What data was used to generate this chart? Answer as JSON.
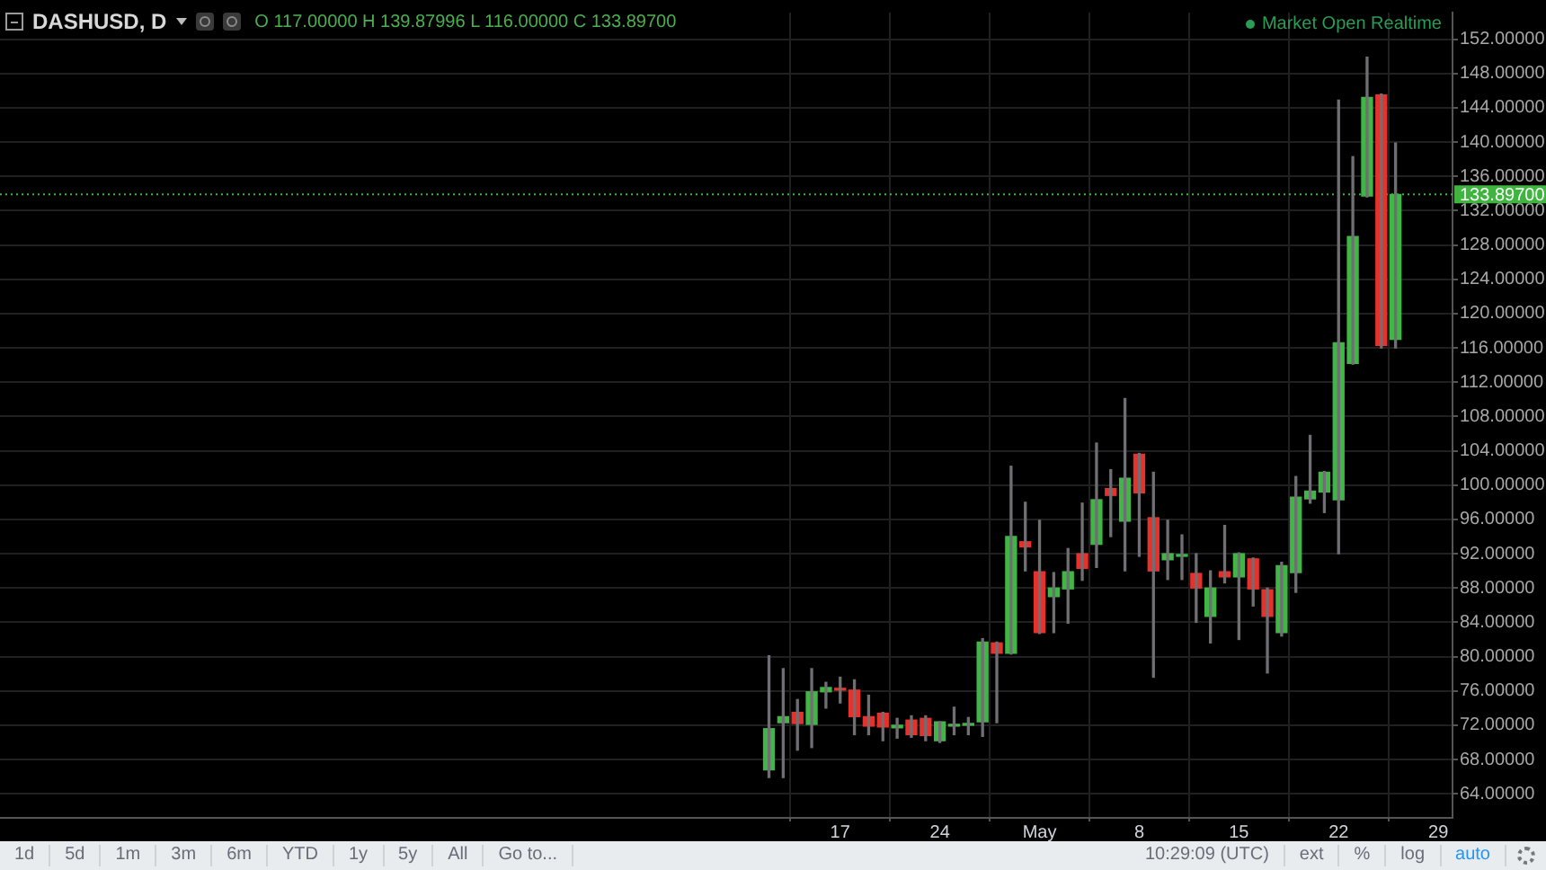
{
  "chart_data": {
    "type": "candlestick",
    "title": "DASHUSD, D",
    "x": [
      "--04-12",
      "--04-13",
      "--04-14",
      "--04-15",
      "--04-16",
      "--04-17",
      "--04-18",
      "--04-19",
      "--04-20",
      "--04-21",
      "--04-22",
      "--04-23",
      "--04-24",
      "--04-25",
      "--04-26",
      "--04-27",
      "--04-28",
      "--04-29",
      "--04-30",
      "--05-01",
      "--05-02",
      "--05-03",
      "--05-04",
      "--05-05",
      "--05-06",
      "--05-07",
      "--05-08",
      "--05-09",
      "--05-10",
      "--05-11",
      "--05-12",
      "--05-13",
      "--05-14",
      "--05-15",
      "--05-16",
      "--05-17",
      "--05-18",
      "--05-19",
      "--05-20",
      "--05-21",
      "--05-22",
      "--05-23",
      "--05-24",
      "--05-25",
      "--05-26"
    ],
    "ohlc": [
      [
        66.8,
        80.1,
        65.9,
        71.6
      ],
      [
        72.3,
        78.6,
        65.9,
        73.0
      ],
      [
        73.5,
        75.0,
        69.1,
        72.2
      ],
      [
        72.1,
        78.6,
        69.4,
        75.9
      ],
      [
        75.9,
        77.0,
        74.0,
        76.4
      ],
      [
        76.3,
        77.6,
        74.6,
        76.1
      ],
      [
        76.1,
        77.3,
        70.9,
        73.0
      ],
      [
        73.0,
        75.5,
        70.9,
        71.9
      ],
      [
        73.4,
        73.5,
        70.2,
        71.8
      ],
      [
        71.7,
        72.8,
        70.5,
        72.0
      ],
      [
        72.6,
        73.1,
        70.6,
        70.9
      ],
      [
        72.8,
        73.1,
        70.2,
        70.8
      ],
      [
        70.2,
        72.4,
        70.0,
        72.4
      ],
      [
        71.9,
        74.1,
        70.9,
        72.0
      ],
      [
        72.0,
        72.9,
        70.9,
        72.1
      ],
      [
        72.4,
        82.1,
        70.7,
        81.7
      ],
      [
        81.6,
        81.7,
        72.3,
        80.4
      ],
      [
        80.4,
        102.2,
        80.3,
        94.0
      ],
      [
        93.4,
        98.0,
        90.0,
        92.8
      ],
      [
        89.9,
        95.9,
        82.7,
        82.8
      ],
      [
        87.0,
        89.8,
        82.8,
        88.0
      ],
      [
        87.9,
        92.6,
        83.9,
        89.9
      ],
      [
        92.0,
        97.9,
        88.9,
        90.3
      ],
      [
        93.1,
        104.9,
        90.4,
        98.3
      ],
      [
        99.6,
        101.8,
        94.0,
        98.8
      ],
      [
        95.8,
        110.1,
        90.0,
        100.8
      ],
      [
        103.6,
        103.7,
        91.7,
        99.1
      ],
      [
        96.2,
        101.5,
        77.6,
        90.0
      ],
      [
        91.3,
        95.9,
        89.0,
        92.0
      ],
      [
        91.7,
        94.2,
        89.0,
        91.8
      ],
      [
        89.7,
        92.0,
        84.0,
        88.0
      ],
      [
        84.7,
        90.0,
        81.6,
        88.0
      ],
      [
        89.9,
        95.3,
        88.6,
        89.3
      ],
      [
        89.3,
        92.1,
        82.0,
        92.0
      ],
      [
        91.4,
        91.5,
        85.9,
        87.9
      ],
      [
        87.8,
        88.0,
        78.1,
        84.7
      ],
      [
        82.8,
        91.0,
        82.4,
        90.6
      ],
      [
        89.8,
        101.0,
        87.5,
        98.6
      ],
      [
        98.4,
        105.8,
        97.9,
        99.3
      ],
      [
        99.2,
        101.6,
        96.8,
        101.5
      ],
      [
        98.3,
        144.9,
        92.0,
        116.6
      ],
      [
        114.2,
        138.3,
        114.1,
        129.0
      ],
      [
        133.7,
        149.9,
        133.6,
        145.2
      ],
      [
        145.5,
        145.6,
        116.0,
        116.3
      ],
      [
        117.0,
        139.87996,
        116.0,
        133.897
      ]
    ],
    "colors": [
      "#41b646",
      "#41b646",
      "#e5322d",
      "#41b646",
      "#41b646",
      "#e5322d",
      "#e5322d",
      "#e5322d",
      "#e5322d",
      "#41b646",
      "#e5322d",
      "#e5322d",
      "#41b646",
      "#41b646",
      "#41b646",
      "#41b646",
      "#e5322d",
      "#41b646",
      "#e5322d",
      "#e5322d",
      "#41b646",
      "#41b646",
      "#e5322d",
      "#41b646",
      "#e5322d",
      "#41b646",
      "#e5322d",
      "#e5322d",
      "#41b646",
      "#41b646",
      "#e5322d",
      "#41b646",
      "#e5322d",
      "#41b646",
      "#e5322d",
      "#e5322d",
      "#41b646",
      "#41b646",
      "#41b646",
      "#41b646",
      "#41b646",
      "#41b646",
      "#41b646",
      "#e5322d",
      "#41b646"
    ],
    "xlim": [
      "--02-17",
      "--05-30"
    ],
    "xticks": [
      {
        "value": "--04-17",
        "label": "17"
      },
      {
        "value": "--04-24",
        "label": "24"
      },
      {
        "value": "--05-01",
        "label": "May"
      },
      {
        "value": "--05-08",
        "label": "8"
      },
      {
        "value": "--05-15",
        "label": "15"
      },
      {
        "value": "--05-22",
        "label": "22"
      },
      {
        "value": "--05-29",
        "label": "29"
      }
    ],
    "ylim": [
      61.2,
      155.1
    ],
    "yticks": [
      {
        "value": 64,
        "label": "64.00000"
      },
      {
        "value": 68,
        "label": "68.00000"
      },
      {
        "value": 72,
        "label": "72.00000"
      },
      {
        "value": 76,
        "label": "76.00000"
      },
      {
        "value": 80,
        "label": "80.00000"
      },
      {
        "value": 84,
        "label": "84.00000"
      },
      {
        "value": 88,
        "label": "88.00000"
      },
      {
        "value": 92,
        "label": "92.00000"
      },
      {
        "value": 96,
        "label": "96.00000"
      },
      {
        "value": 100,
        "label": "100.00000"
      },
      {
        "value": 104,
        "label": "104.00000"
      },
      {
        "value": 108,
        "label": "108.00000"
      },
      {
        "value": 112,
        "label": "112.00000"
      },
      {
        "value": 116,
        "label": "116.00000"
      },
      {
        "value": 120,
        "label": "120.00000"
      },
      {
        "value": 124,
        "label": "124.00000"
      },
      {
        "value": 128,
        "label": "128.00000"
      },
      {
        "value": 132,
        "label": "132.00000"
      },
      {
        "value": 136,
        "label": "136.00000"
      },
      {
        "value": 140,
        "label": "140.00000"
      },
      {
        "value": 144,
        "label": "144.00000"
      },
      {
        "value": 148,
        "label": "148.00000"
      },
      {
        "value": 152,
        "label": "152.00000"
      }
    ],
    "grid": true,
    "ref_lines": [
      {
        "axis": "y",
        "value": 133.897,
        "label": "133.89700",
        "color": "#3fb53f",
        "line_style": "dotted"
      }
    ],
    "annotations": [
      "O 117.00000 H 139.87996 L 116.00000 C 133.89700",
      "Market Open Realtime",
      "1d",
      "5d",
      "1m",
      "3m",
      "6m",
      "YTD",
      "1y",
      "5y",
      "All",
      "Go to...",
      "10:29:09 (UTC)",
      "ext",
      "%",
      "log",
      "auto"
    ]
  }
}
